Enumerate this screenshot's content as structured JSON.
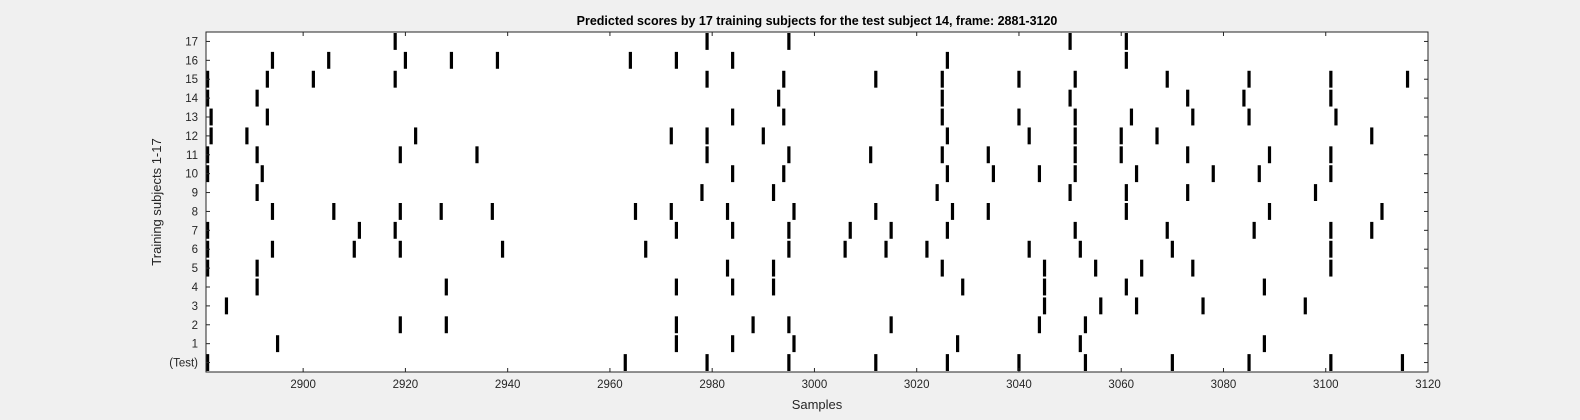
{
  "chart_data": {
    "type": "raster",
    "title": "Predicted scores by 17 training subjects for the test subject 14, frame: 2881-3120",
    "xlabel": "Samples",
    "ylabel": "Training subjects 1-17",
    "xlim": [
      2881,
      3120
    ],
    "xticks": [
      2900,
      2920,
      2940,
      2960,
      2980,
      3000,
      3020,
      3040,
      3060,
      3080,
      3100,
      3120
    ],
    "rows": [
      {
        "label": "(Test)",
        "spikes": [
          2881,
          2963,
          2979,
          2995,
          3012,
          3026,
          3040,
          3053,
          3070,
          3085,
          3101,
          3115
        ]
      },
      {
        "label": "1",
        "spikes": [
          2895,
          2973,
          2984,
          2996,
          3028,
          3052,
          3088
        ]
      },
      {
        "label": "2",
        "spikes": [
          2919,
          2928,
          2973,
          2988,
          2995,
          3015,
          3044,
          3053
        ]
      },
      {
        "label": "3",
        "spikes": [
          2885,
          3045,
          3056,
          3063,
          3076,
          3096
        ]
      },
      {
        "label": "4",
        "spikes": [
          2891,
          2928,
          2973,
          2984,
          2992,
          3029,
          3045,
          3061,
          3088
        ]
      },
      {
        "label": "5",
        "spikes": [
          2881,
          2891,
          2983,
          2992,
          3025,
          3045,
          3055,
          3064,
          3074,
          3101
        ]
      },
      {
        "label": "6",
        "spikes": [
          2881,
          2894,
          2910,
          2919,
          2939,
          2967,
          2995,
          3006,
          3014,
          3022,
          3042,
          3052,
          3070,
          3101
        ]
      },
      {
        "label": "7",
        "spikes": [
          2881,
          2911,
          2918,
          2973,
          2984,
          2995,
          3007,
          3015,
          3026,
          3051,
          3069,
          3086,
          3101,
          3109
        ]
      },
      {
        "label": "8",
        "spikes": [
          2894,
          2906,
          2919,
          2927,
          2937,
          2965,
          2972,
          2983,
          2996,
          3012,
          3027,
          3034,
          3061,
          3089,
          3111
        ]
      },
      {
        "label": "9",
        "spikes": [
          2891,
          2978,
          2992,
          3024,
          3050,
          3061,
          3073,
          3098
        ]
      },
      {
        "label": "10",
        "spikes": [
          2881,
          2892,
          2984,
          2994,
          3026,
          3035,
          3044,
          3051,
          3063,
          3078,
          3087,
          3101
        ]
      },
      {
        "label": "11",
        "spikes": [
          2881,
          2891,
          2919,
          2934,
          2979,
          2995,
          3011,
          3025,
          3034,
          3051,
          3060,
          3073,
          3089,
          3101
        ]
      },
      {
        "label": "12",
        "spikes": [
          2882,
          2889,
          2922,
          2972,
          2979,
          2990,
          3026,
          3042,
          3051,
          3060,
          3067,
          3109
        ]
      },
      {
        "label": "13",
        "spikes": [
          2882,
          2893,
          2984,
          2994,
          3025,
          3040,
          3051,
          3062,
          3074,
          3085,
          3102
        ]
      },
      {
        "label": "14",
        "spikes": [
          2881,
          2891,
          2993,
          3025,
          3050,
          3073,
          3084,
          3101
        ]
      },
      {
        "label": "15",
        "spikes": [
          2881,
          2893,
          2902,
          2918,
          2979,
          2994,
          3012,
          3025,
          3040,
          3051,
          3069,
          3085,
          3101,
          3116
        ]
      },
      {
        "label": "16",
        "spikes": [
          2894,
          2905,
          2920,
          2929,
          2938,
          2964,
          2973,
          2984,
          3026,
          3061
        ]
      },
      {
        "label": "17",
        "spikes": [
          2918,
          2979,
          2995,
          3050,
          3061
        ]
      }
    ],
    "grid": false,
    "colors": {
      "spike": "#000000",
      "background": "#ffffff",
      "figure": "#f0f0f0",
      "axis": "#262626"
    }
  }
}
